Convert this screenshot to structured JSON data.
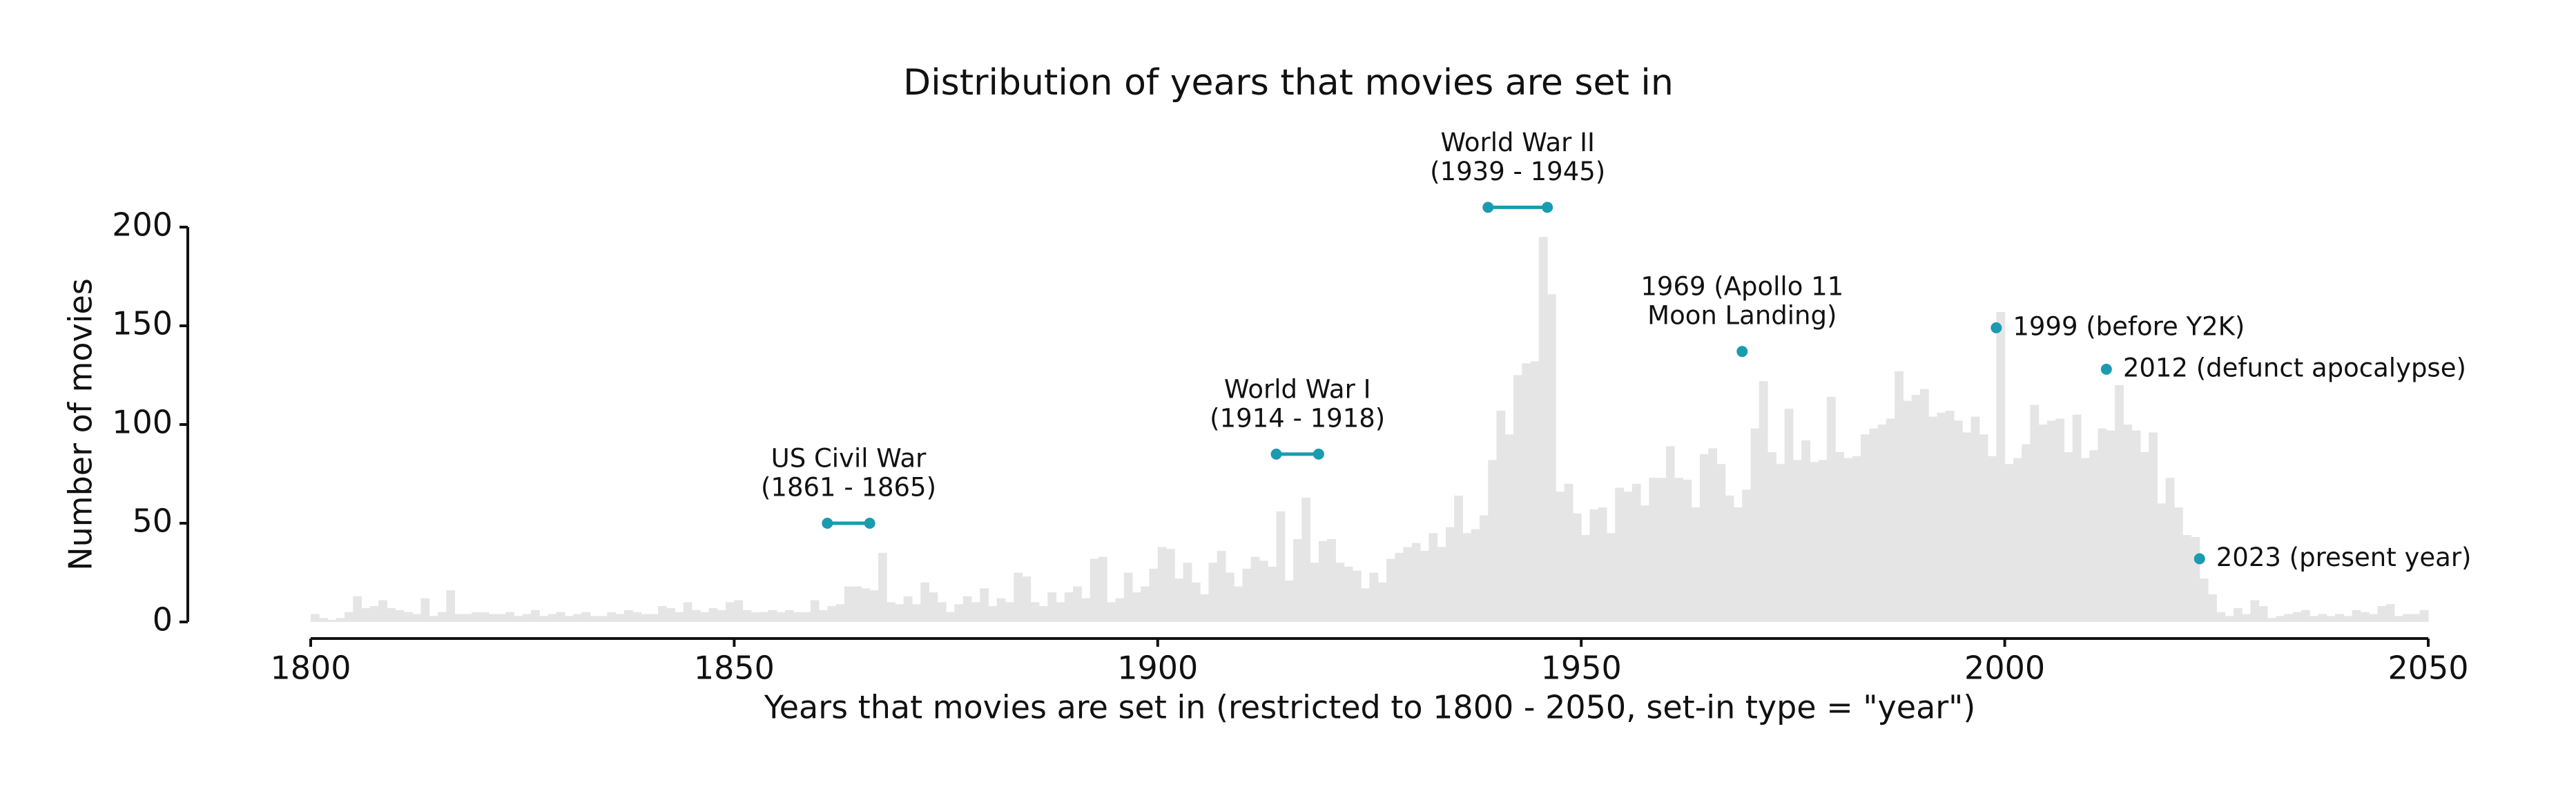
{
  "chart_data": {
    "type": "histogram",
    "title": "Distribution of years that movies are set in",
    "xlabel": "Years that movies are set in (restricted to 1800 - 2050, set-in type = \"year\")",
    "ylabel": "Number of movies",
    "color": "#e5e5e5",
    "annotation_color": "#1a9bb0",
    "xlim": [
      1800,
      2050
    ],
    "ylim": [
      0,
      200
    ],
    "xticks": [
      1800,
      1850,
      1900,
      1950,
      2000,
      2050
    ],
    "yticks": [
      0,
      50,
      100,
      150,
      200
    ],
    "bins": [
      1800,
      1801,
      1802,
      1803,
      1804,
      1805,
      1806,
      1807,
      1808,
      1809,
      1810,
      1811,
      1812,
      1813,
      1814,
      1815,
      1816,
      1817,
      1818,
      1819,
      1820,
      1821,
      1822,
      1823,
      1824,
      1825,
      1826,
      1827,
      1828,
      1829,
      1830,
      1831,
      1832,
      1833,
      1834,
      1835,
      1836,
      1837,
      1838,
      1839,
      1840,
      1841,
      1842,
      1843,
      1844,
      1845,
      1846,
      1847,
      1848,
      1849,
      1850,
      1851,
      1852,
      1853,
      1854,
      1855,
      1856,
      1857,
      1858,
      1859,
      1860,
      1861,
      1862,
      1863,
      1864,
      1865,
      1866,
      1867,
      1868,
      1869,
      1870,
      1871,
      1872,
      1873,
      1874,
      1875,
      1876,
      1877,
      1878,
      1879,
      1880,
      1881,
      1882,
      1883,
      1884,
      1885,
      1886,
      1887,
      1888,
      1889,
      1890,
      1891,
      1892,
      1893,
      1894,
      1895,
      1896,
      1897,
      1898,
      1899,
      1900,
      1901,
      1902,
      1903,
      1904,
      1905,
      1906,
      1907,
      1908,
      1909,
      1910,
      1911,
      1912,
      1913,
      1914,
      1915,
      1916,
      1917,
      1918,
      1919,
      1920,
      1921,
      1922,
      1923,
      1924,
      1925,
      1926,
      1927,
      1928,
      1929,
      1930,
      1931,
      1932,
      1933,
      1934,
      1935,
      1936,
      1937,
      1938,
      1939,
      1940,
      1941,
      1942,
      1943,
      1944,
      1945,
      1946,
      1947,
      1948,
      1949,
      1950,
      1951,
      1952,
      1953,
      1954,
      1955,
      1956,
      1957,
      1958,
      1959,
      1960,
      1961,
      1962,
      1963,
      1964,
      1965,
      1966,
      1967,
      1968,
      1969,
      1970,
      1971,
      1972,
      1973,
      1974,
      1975,
      1976,
      1977,
      1978,
      1979,
      1980,
      1981,
      1982,
      1983,
      1984,
      1985,
      1986,
      1987,
      1988,
      1989,
      1990,
      1991,
      1992,
      1993,
      1994,
      1995,
      1996,
      1997,
      1998,
      1999,
      2000,
      2001,
      2002,
      2003,
      2004,
      2005,
      2006,
      2007,
      2008,
      2009,
      2010,
      2011,
      2012,
      2013,
      2014,
      2015,
      2016,
      2017,
      2018,
      2019,
      2020,
      2021,
      2022,
      2023,
      2024,
      2025,
      2026,
      2027,
      2028,
      2029,
      2030,
      2031,
      2032,
      2033,
      2034,
      2035,
      2036,
      2037,
      2038,
      2039,
      2040,
      2041,
      2042,
      2043,
      2044,
      2045,
      2046,
      2047,
      2048,
      2049,
      2050
    ],
    "values": [
      4,
      2,
      1,
      2,
      5,
      13,
      7,
      8,
      11,
      7,
      6,
      5,
      4,
      12,
      3,
      5,
      16,
      4,
      4,
      5,
      5,
      4,
      4,
      5,
      3,
      4,
      6,
      3,
      4,
      5,
      3,
      4,
      5,
      3,
      3,
      5,
      4,
      6,
      5,
      4,
      4,
      8,
      7,
      5,
      10,
      6,
      5,
      7,
      6,
      10,
      11,
      6,
      5,
      5,
      6,
      5,
      6,
      5,
      5,
      11,
      6,
      8,
      9,
      18,
      18,
      17,
      16,
      35,
      10,
      9,
      13,
      9,
      20,
      15,
      10,
      5,
      9,
      13,
      10,
      17,
      8,
      12,
      10,
      25,
      23,
      10,
      8,
      15,
      10,
      15,
      18,
      12,
      32,
      33,
      10,
      12,
      25,
      15,
      18,
      27,
      38,
      37,
      22,
      30,
      20,
      14,
      30,
      36,
      25,
      18,
      27,
      33,
      31,
      28,
      56,
      21,
      42,
      63,
      30,
      41,
      42,
      30,
      28,
      26,
      17,
      25,
      20,
      32,
      35,
      38,
      40,
      36,
      45,
      38,
      48,
      64,
      45,
      47,
      54,
      82,
      107,
      95,
      125,
      131,
      132,
      195,
      166,
      66,
      70,
      55,
      44,
      57,
      58,
      45,
      68,
      66,
      70,
      59,
      73,
      73,
      89,
      73,
      72,
      58,
      85,
      88,
      80,
      64,
      58,
      67,
      98,
      122,
      86,
      80,
      108,
      82,
      92,
      81,
      82,
      114,
      86,
      83,
      84,
      95,
      98,
      100,
      103,
      127,
      112,
      115,
      118,
      104,
      106,
      107,
      102,
      96,
      104,
      95,
      84,
      157,
      80,
      83,
      90,
      110,
      100,
      102,
      103,
      86,
      105,
      83,
      87,
      98,
      97,
      120,
      100,
      97,
      86,
      96,
      60,
      73,
      58,
      44,
      43,
      22,
      14,
      5,
      3,
      7,
      4,
      11,
      8,
      2,
      3,
      4,
      5,
      6,
      3,
      4,
      3,
      4,
      3,
      6,
      5,
      4,
      8,
      9,
      3,
      4,
      4,
      6
    ],
    "annotations": [
      {
        "lines": [
          "US Civil War",
          "(1861 - 1865)"
        ],
        "start": 1861,
        "end": 1866,
        "y": 50
      },
      {
        "lines": [
          "World War I",
          "(1914 - 1918)"
        ],
        "start": 1914,
        "end": 1919,
        "y": 85
      },
      {
        "lines": [
          "World War II",
          "(1939 - 1945)"
        ],
        "start": 1939,
        "end": 1946,
        "y": 210
      },
      {
        "lines": [
          "1969 (Apollo 11",
          "Moon Landing)"
        ],
        "start": 1969,
        "y": 137
      },
      {
        "lines": [
          "1999 (before Y2K)"
        ],
        "start": 1999,
        "y": 149
      },
      {
        "lines": [
          "2012 (defunct apocalypse)"
        ],
        "start": 2012,
        "y": 128
      },
      {
        "lines": [
          "2023 (present year)"
        ],
        "start": 2023,
        "y": 32
      }
    ]
  }
}
